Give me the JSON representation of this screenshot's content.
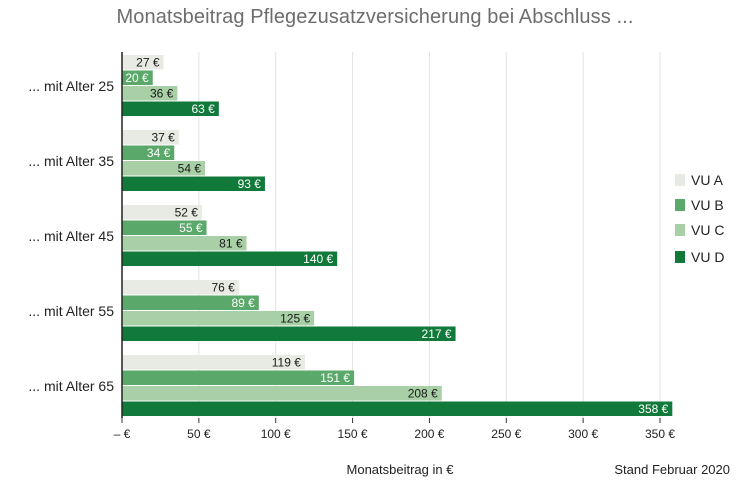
{
  "chart_data": {
    "type": "bar",
    "orientation": "horizontal",
    "title": "Monatsbeitrag Pflegezusatzversicherung bei Abschluss ...",
    "xlabel": "Monatsbeitrag in €",
    "ylabel": "",
    "note": "Stand Februar 2020",
    "categories": [
      "... mit Alter 25",
      "... mit Alter 35",
      "... mit Alter 45",
      "... mit Alter 55",
      "... mit Alter 65"
    ],
    "series": [
      {
        "name": "VU A",
        "color": "#e8ebe4",
        "values": [
          27,
          37,
          52,
          76,
          119
        ]
      },
      {
        "name": "VU B",
        "color": "#5aa86a",
        "values": [
          20,
          34,
          55,
          89,
          151
        ]
      },
      {
        "name": "VU C",
        "color": "#a8cfa5",
        "values": [
          36,
          54,
          81,
          125,
          208
        ]
      },
      {
        "name": "VU D",
        "color": "#117a3b",
        "values": [
          63,
          93,
          140,
          217,
          358
        ]
      }
    ],
    "value_labels": [
      [
        "27 €",
        "37 €",
        "52 €",
        "76 €",
        "119 €"
      ],
      [
        "20 €",
        "34 €",
        "55 €",
        "89 €",
        "151 €"
      ],
      [
        "36 €",
        "54 €",
        "81 €",
        "125 €",
        "208 €"
      ],
      [
        "63 €",
        "93 €",
        "140 €",
        "217 €",
        "358 €"
      ]
    ],
    "xlim": [
      0,
      350
    ],
    "xticks": [
      0,
      50,
      100,
      150,
      200,
      250,
      300,
      350
    ],
    "xtick_labels": [
      "– €",
      "50 €",
      "100 €",
      "150 €",
      "200 €",
      "250 €",
      "300 €",
      "350 €"
    ],
    "grid": true,
    "legend_position": "right"
  }
}
